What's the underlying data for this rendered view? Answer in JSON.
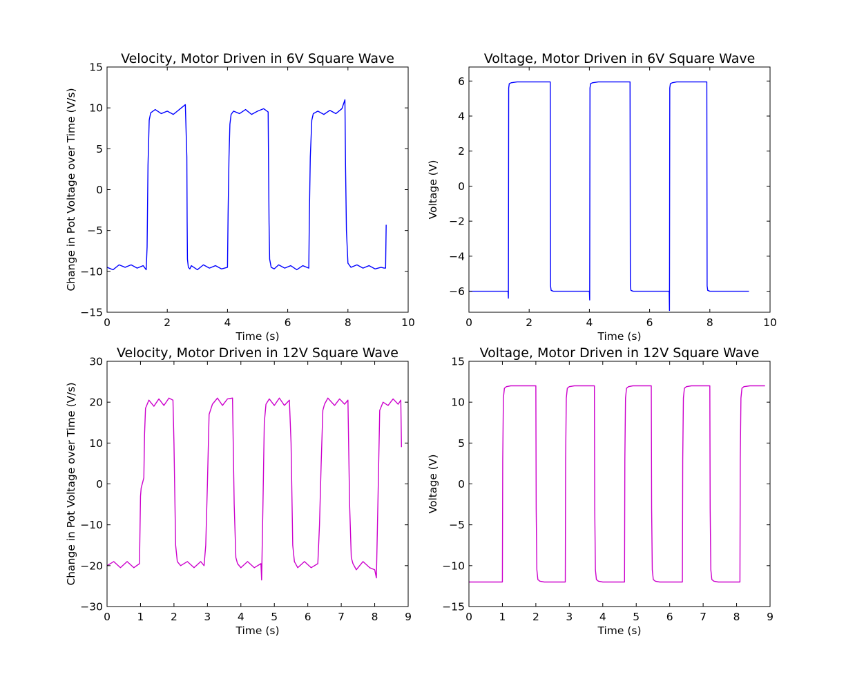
{
  "figure": {
    "background": "#ffffff"
  },
  "chart_data": [
    {
      "type": "line",
      "title": "Velocity, Motor Driven in 6V Square Wave",
      "xlabel": "Time (s)",
      "ylabel": "Change in Pot Voltage over Time (V/s)",
      "xlim": [
        0,
        10
      ],
      "ylim": [
        -15,
        15
      ],
      "xticks": [
        0,
        2,
        4,
        6,
        8,
        10
      ],
      "yticks": [
        -15,
        -10,
        -5,
        0,
        5,
        10,
        15
      ],
      "xtick_labels": [
        "0",
        "2",
        "4",
        "6",
        "8",
        "10"
      ],
      "ytick_labels": [
        "−15",
        "−10",
        "−5",
        "0",
        "5",
        "10",
        "15"
      ],
      "grid": false,
      "color": "#0000ff",
      "series": [
        {
          "x": [
            0,
            0.2,
            0.4,
            0.6,
            0.8,
            1.0,
            1.2,
            1.3,
            1.33,
            1.36,
            1.4,
            1.45,
            1.6,
            1.8,
            2.0,
            2.2,
            2.4,
            2.6,
            2.65,
            2.66,
            2.67,
            2.7,
            2.75,
            2.8,
            3.0,
            3.2,
            3.4,
            3.6,
            3.8,
            4.0,
            4.02,
            4.05,
            4.08,
            4.12,
            4.2,
            4.4,
            4.6,
            4.8,
            5.0,
            5.2,
            5.35,
            5.38,
            5.4,
            5.45,
            5.55,
            5.7,
            5.9,
            6.1,
            6.3,
            6.5,
            6.7,
            6.72,
            6.75,
            6.8,
            6.85,
            7.0,
            7.2,
            7.4,
            7.6,
            7.8,
            7.9,
            7.92,
            7.95,
            8.0,
            8.1,
            8.3,
            8.5,
            8.7,
            8.9,
            9.1,
            9.2,
            9.25,
            9.27
          ],
          "y": [
            -9.5,
            -9.8,
            -9.2,
            -9.5,
            -9.2,
            -9.6,
            -9.3,
            -9.8,
            -7,
            3,
            8.5,
            9.4,
            9.8,
            9.3,
            9.6,
            9.2,
            9.8,
            10.4,
            4,
            -4,
            -8.5,
            -9.5,
            -9.7,
            -9.3,
            -9.8,
            -9.2,
            -9.6,
            -9.3,
            -9.7,
            -9.5,
            -3,
            4,
            8,
            9.2,
            9.6,
            9.3,
            9.8,
            9.2,
            9.6,
            9.9,
            9.5,
            -4,
            -8.5,
            -9.5,
            -9.7,
            -9.2,
            -9.6,
            -9.3,
            -9.8,
            -9.3,
            -9.6,
            -3,
            4,
            8.5,
            9.3,
            9.6,
            9.2,
            9.7,
            9.3,
            9.9,
            11,
            3,
            -5,
            -9,
            -9.5,
            -9.2,
            -9.6,
            -9.3,
            -9.7,
            -9.5,
            -9.6,
            -9.6,
            -4.3
          ]
        }
      ]
    },
    {
      "type": "line",
      "title": "Voltage, Motor Driven in 6V Square Wave",
      "xlabel": "Time (s)",
      "ylabel": "Voltage (V)",
      "xlim": [
        0,
        10
      ],
      "ylim": [
        -7.2,
        6.8
      ],
      "xticks": [
        0,
        2,
        4,
        6,
        8,
        10
      ],
      "yticks": [
        -6,
        -4,
        -2,
        0,
        2,
        4,
        6
      ],
      "xtick_labels": [
        "0",
        "2",
        "4",
        "6",
        "8",
        "10"
      ],
      "ytick_labels": [
        "−6",
        "−4",
        "−2",
        "0",
        "2",
        "4",
        "6"
      ],
      "grid": false,
      "color": "#0000ff",
      "series": [
        {
          "x": [
            0,
            1.3,
            1.31,
            1.32,
            1.34,
            1.4,
            1.6,
            2.7,
            2.71,
            2.73,
            2.8,
            3.0,
            4.0,
            4.01,
            4.02,
            4.04,
            4.1,
            4.3,
            5.35,
            5.36,
            5.38,
            5.45,
            5.6,
            6.65,
            6.66,
            6.67,
            6.69,
            6.75,
            6.9,
            7.9,
            7.91,
            7.93,
            8.0,
            8.2,
            9.3
          ],
          "y": [
            -6,
            -6,
            -6.4,
            5.6,
            5.85,
            5.9,
            5.95,
            5.95,
            -5.7,
            -5.95,
            -6,
            -6,
            -6,
            -6.5,
            5.6,
            5.85,
            5.9,
            5.95,
            5.95,
            -5.7,
            -5.95,
            -6,
            -6,
            -6,
            -7.1,
            5.6,
            5.85,
            5.9,
            5.95,
            5.95,
            -5.7,
            -5.95,
            -6,
            -6,
            -6
          ]
        }
      ]
    },
    {
      "type": "line",
      "title": "Velocity, Motor Driven in 12V Square Wave",
      "xlabel": "Time (s)",
      "ylabel": "Change in Pot Voltage over Time (V/s)",
      "xlim": [
        0,
        9
      ],
      "ylim": [
        -30,
        30
      ],
      "xticks": [
        0,
        1,
        2,
        3,
        4,
        5,
        6,
        7,
        8,
        9
      ],
      "yticks": [
        -30,
        -20,
        -10,
        0,
        10,
        20,
        30
      ],
      "xtick_labels": [
        "0",
        "1",
        "2",
        "3",
        "4",
        "5",
        "6",
        "7",
        "8",
        "9"
      ],
      "ytick_labels": [
        "−30",
        "−20",
        "−10",
        "0",
        "10",
        "20",
        "30"
      ],
      "grid": false,
      "color": "#cc00cc",
      "series": [
        {
          "x": [
            0,
            0.2,
            0.4,
            0.6,
            0.8,
            0.97,
            1.0,
            1.02,
            1.1,
            1.12,
            1.15,
            1.25,
            1.4,
            1.55,
            1.7,
            1.85,
            1.97,
            2.0,
            2.05,
            2.1,
            2.2,
            2.4,
            2.6,
            2.8,
            2.9,
            2.95,
            3.0,
            3.05,
            3.15,
            3.3,
            3.45,
            3.6,
            3.75,
            3.8,
            3.85,
            3.9,
            4.0,
            4.2,
            4.4,
            4.6,
            4.62,
            4.66,
            4.7,
            4.75,
            4.85,
            5.0,
            5.15,
            5.3,
            5.45,
            5.5,
            5.55,
            5.6,
            5.7,
            5.9,
            6.1,
            6.3,
            6.35,
            6.4,
            6.45,
            6.5,
            6.6,
            6.8,
            6.95,
            7.1,
            7.2,
            7.25,
            7.3,
            7.35,
            7.45,
            7.65,
            7.85,
            8.0,
            8.05,
            8.1,
            8.15,
            8.25,
            8.4,
            8.55,
            8.7,
            8.78,
            8.8
          ],
          "y": [
            -20,
            -19,
            -20.5,
            -19,
            -20.5,
            -19.5,
            -3,
            -1,
            1.5,
            12,
            18.5,
            20.5,
            19,
            20.8,
            19.2,
            21,
            20.5,
            10,
            -15,
            -19,
            -20,
            -19,
            -20.5,
            -19,
            -20,
            -15,
            0,
            17,
            19.5,
            21,
            19.2,
            20.8,
            21,
            -5,
            -18,
            -19.5,
            -20.5,
            -19,
            -20.5,
            -19.5,
            -23.5,
            -5,
            15,
            19.5,
            20.8,
            19.2,
            21,
            19.2,
            20.5,
            10,
            -15,
            -19,
            -20.5,
            -19,
            -20.5,
            -19.5,
            -10,
            5,
            18,
            19.5,
            21,
            19.2,
            20.8,
            19.5,
            20.5,
            -5,
            -18,
            -19.5,
            -21,
            -19,
            -20.5,
            -21,
            -23,
            -3,
            18,
            20,
            19.2,
            20.8,
            19.5,
            20.5,
            9
          ]
        }
      ]
    },
    {
      "type": "line",
      "title": "Voltage, Motor Driven in 12V Square Wave",
      "xlabel": "Time (s)",
      "ylabel": "Voltage (V)",
      "xlim": [
        0,
        9
      ],
      "ylim": [
        -15,
        15
      ],
      "xticks": [
        0,
        1,
        2,
        3,
        4,
        5,
        6,
        7,
        8,
        9
      ],
      "yticks": [
        -15,
        -10,
        -5,
        0,
        5,
        10,
        15
      ],
      "xtick_labels": [
        "0",
        "1",
        "2",
        "3",
        "4",
        "5",
        "6",
        "7",
        "8",
        "9"
      ],
      "ytick_labels": [
        "−15",
        "−10",
        "−5",
        "0",
        "5",
        "10",
        "15"
      ],
      "grid": false,
      "color": "#cc00cc",
      "series": [
        {
          "x": [
            0,
            1.0,
            1.01,
            1.03,
            1.06,
            1.12,
            1.25,
            2.0,
            2.01,
            2.03,
            2.06,
            2.12,
            2.25,
            2.88,
            2.89,
            2.91,
            2.94,
            3.0,
            3.15,
            3.75,
            3.76,
            3.78,
            3.81,
            3.87,
            4.0,
            4.65,
            4.66,
            4.68,
            4.71,
            4.77,
            4.9,
            5.45,
            5.46,
            5.48,
            5.51,
            5.57,
            5.7,
            6.38,
            6.39,
            6.41,
            6.44,
            6.5,
            6.65,
            7.2,
            7.21,
            7.23,
            7.26,
            7.32,
            7.45,
            8.1,
            8.11,
            8.13,
            8.16,
            8.22,
            8.4,
            8.85
          ],
          "y": [
            -12,
            -12,
            3,
            10.5,
            11.7,
            11.9,
            12,
            12,
            -3,
            -10.5,
            -11.7,
            -11.9,
            -12,
            -12,
            3,
            10.5,
            11.7,
            11.9,
            12,
            12,
            -3,
            -10.5,
            -11.7,
            -11.9,
            -12,
            -12,
            3,
            10.5,
            11.7,
            11.9,
            12,
            12,
            -3,
            -10.5,
            -11.7,
            -11.9,
            -12,
            -12,
            3,
            10.5,
            11.7,
            11.9,
            12,
            12,
            -3,
            -10.5,
            -11.7,
            -11.9,
            -12,
            -12,
            3,
            10.5,
            11.7,
            11.9,
            12,
            12
          ]
        }
      ]
    }
  ]
}
